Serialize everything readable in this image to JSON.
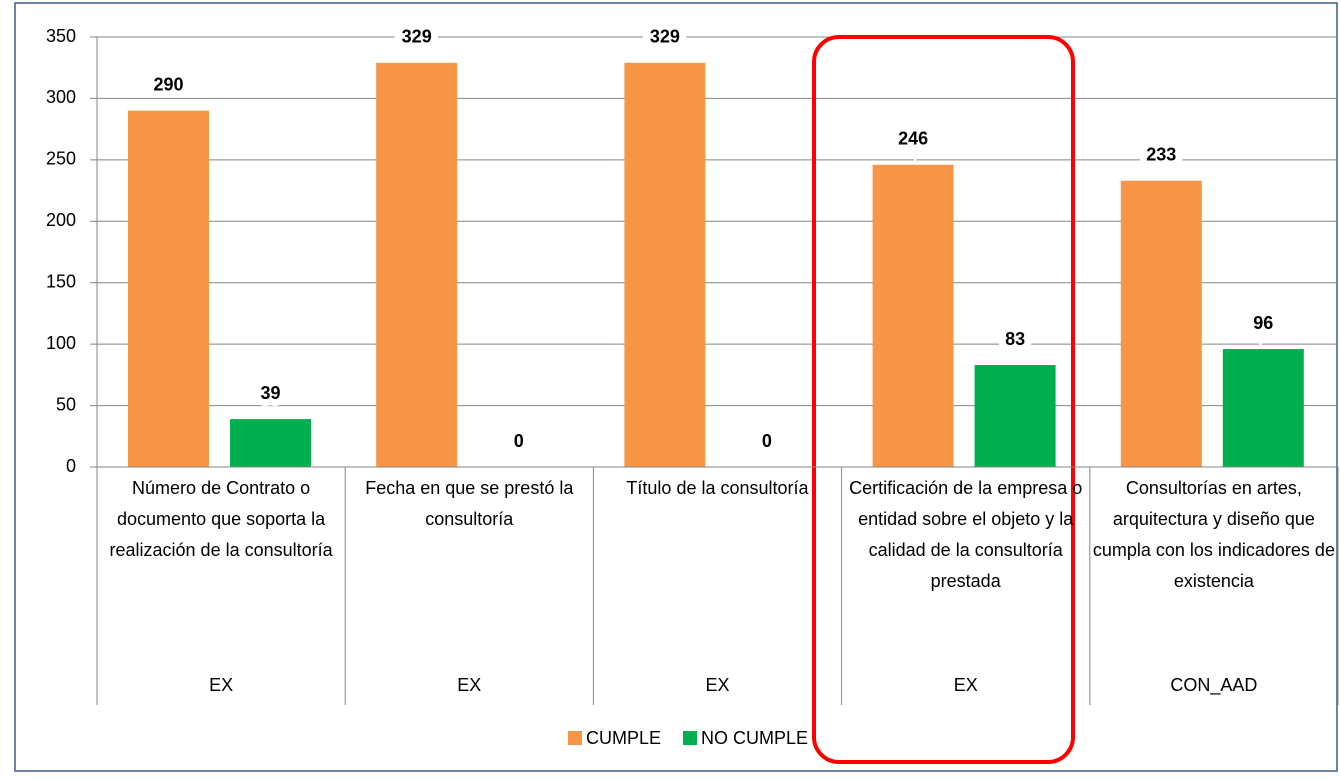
{
  "chart_data": {
    "type": "bar",
    "categories": [
      "Número de Contrato o documento que soporta la realización de la consultoría",
      "Fecha en que se prestó la consultoría",
      "Título de la consultoría",
      "Certificación de la empresa o entidad sobre el objeto y la calidad de la consultoría prestada",
      "Consultorías en artes, arquitectura y diseño que cumpla con los indicadores de existencia"
    ],
    "groups": [
      "EX",
      "EX",
      "EX",
      "EX",
      "CON_AAD"
    ],
    "series": [
      {
        "name": "CUMPLE",
        "color": "#f79646",
        "values": [
          290,
          329,
          329,
          246,
          233
        ]
      },
      {
        "name": "NO CUMPLE",
        "color": "#00b050",
        "values": [
          39,
          0,
          0,
          83,
          96
        ]
      }
    ],
    "ylim": [
      0,
      350
    ],
    "yticks": [
      0,
      50,
      100,
      150,
      200,
      250,
      300,
      350
    ],
    "grid": true,
    "legend": "bottom"
  }
}
